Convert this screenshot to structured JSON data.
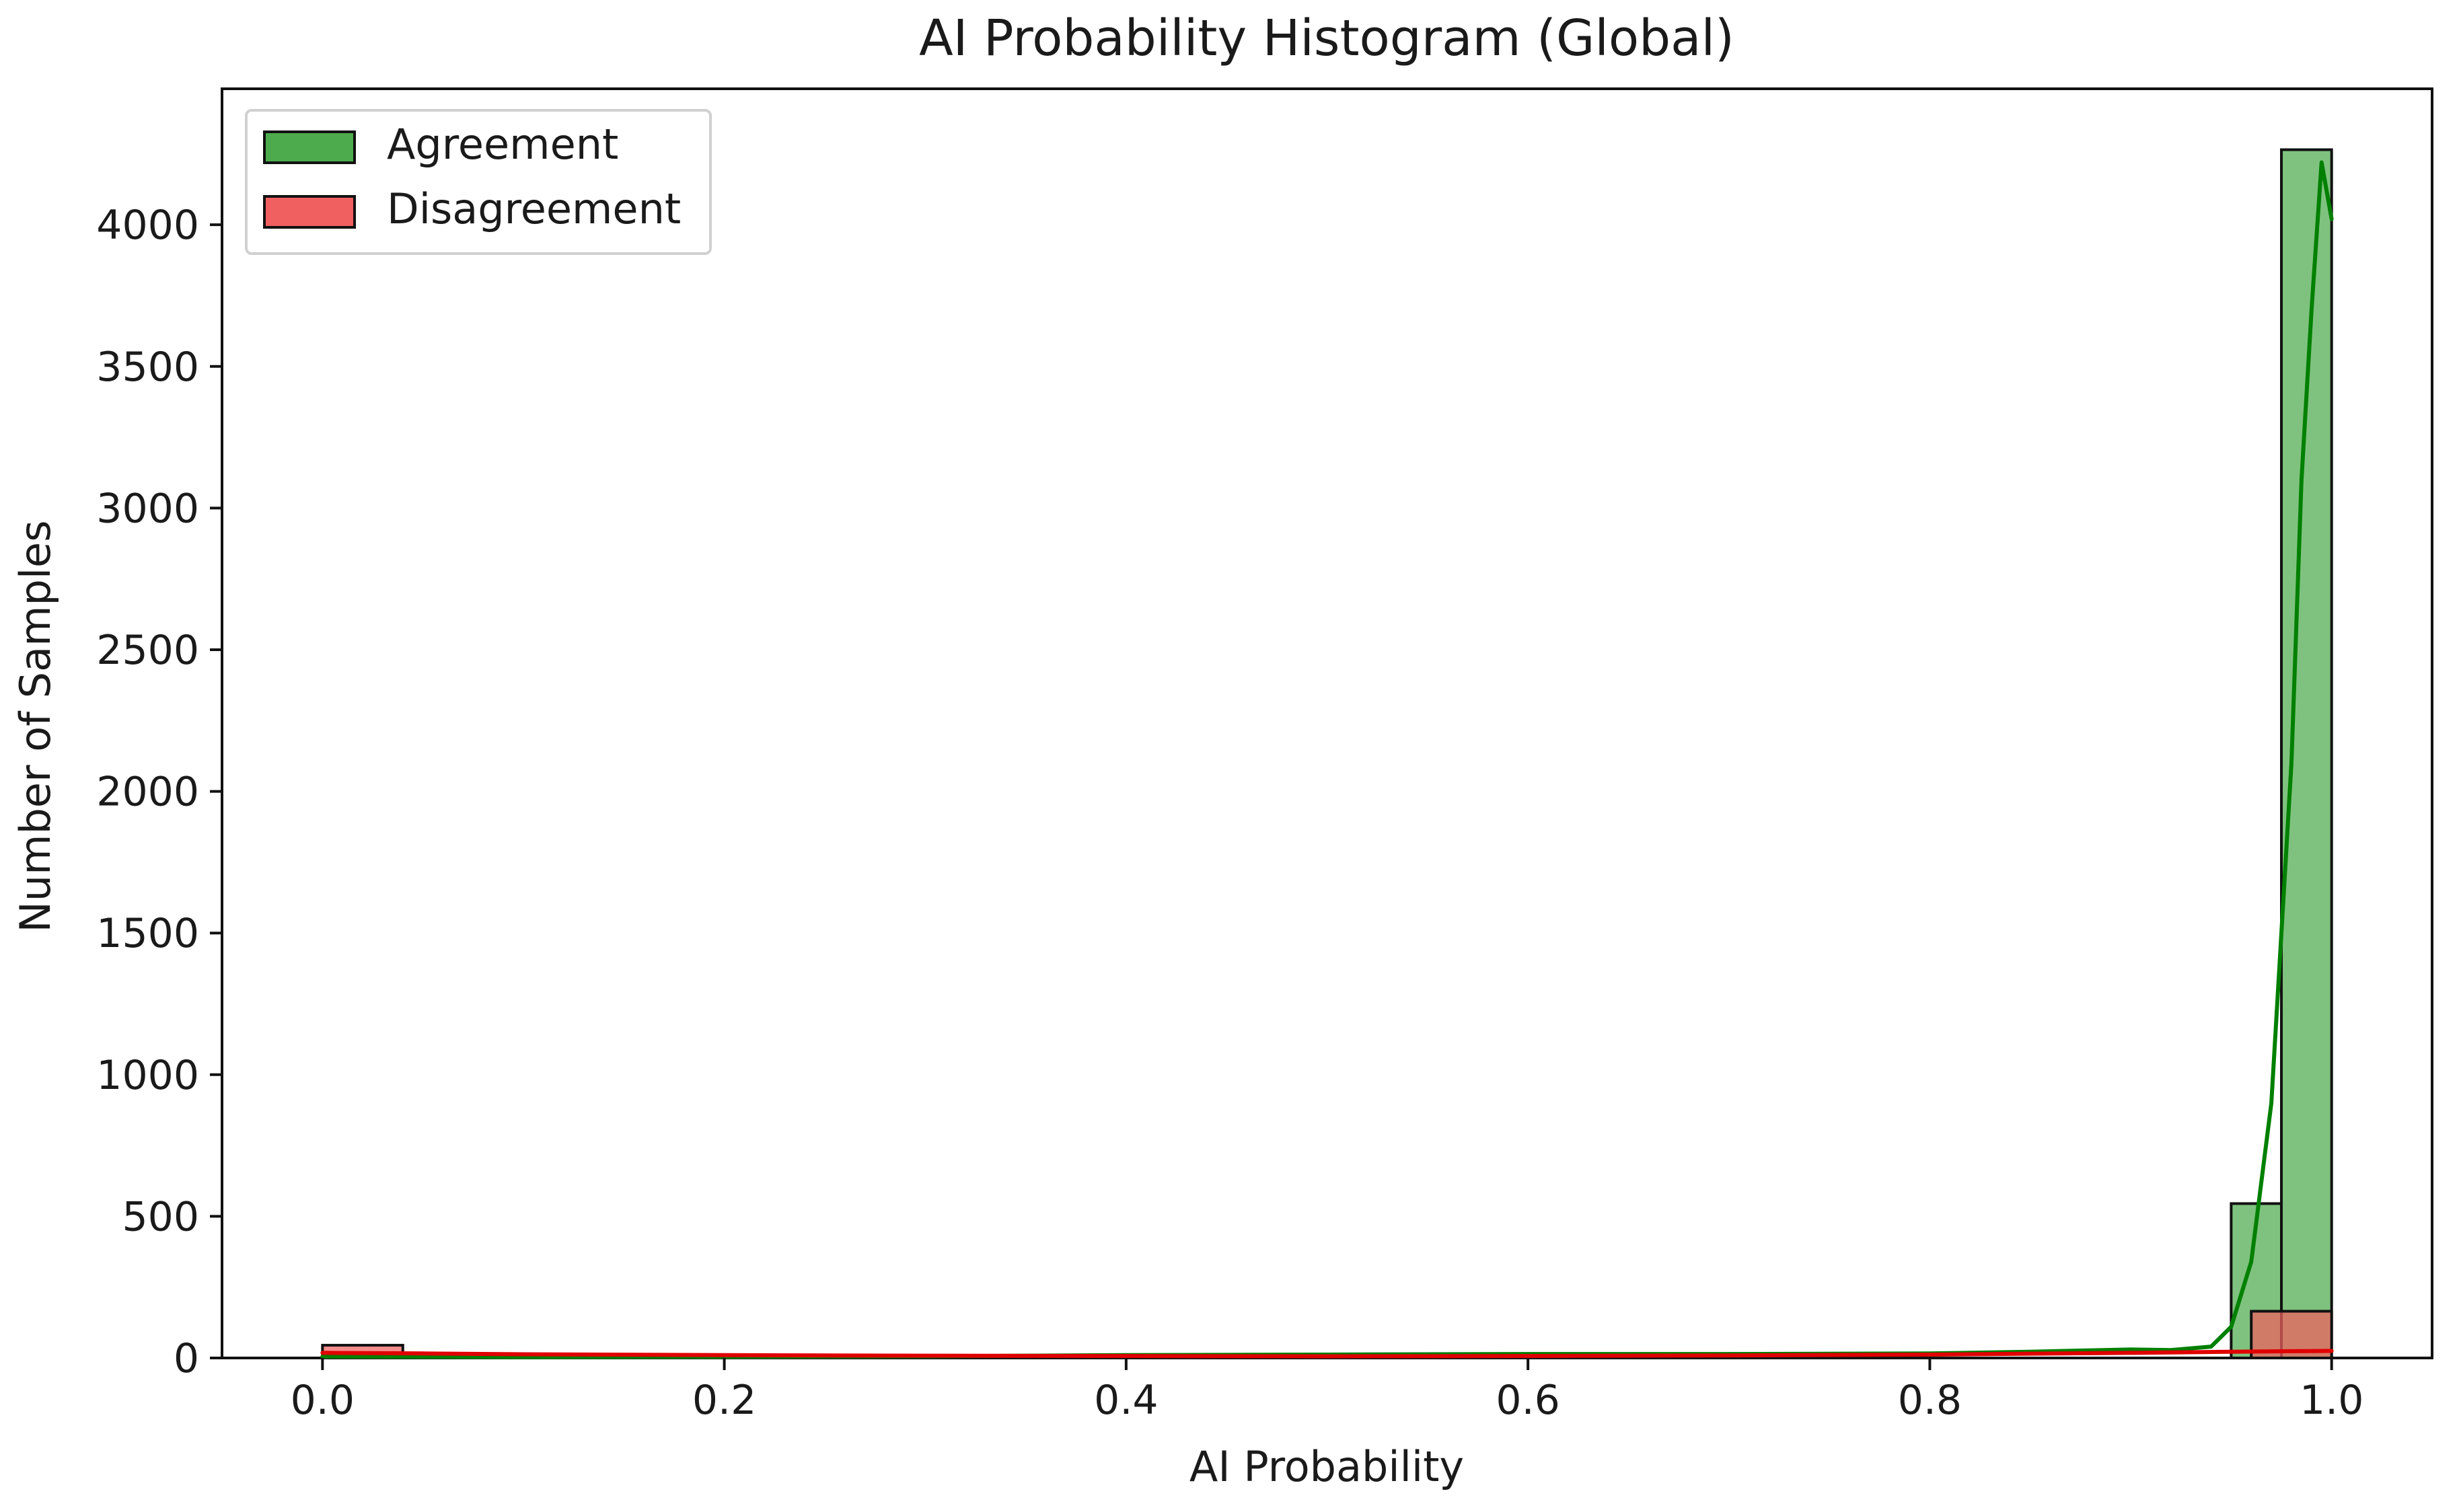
{
  "chart_data": {
    "type": "bar",
    "title": "AI Probability Histogram (Global)",
    "xlabel": "AI Probability",
    "ylabel": "Number of Samples",
    "xlim": [
      -0.05,
      1.05
    ],
    "ylim": [
      0,
      4480
    ],
    "xticks": [
      0.0,
      0.2,
      0.4,
      0.6,
      0.8,
      1.0
    ],
    "xtick_labels": [
      "0.0",
      "0.2",
      "0.4",
      "0.6",
      "0.8",
      "1.0"
    ],
    "yticks": [
      0,
      500,
      1000,
      1500,
      2000,
      2500,
      3000,
      3500,
      4000
    ],
    "ytick_labels": [
      "0",
      "500",
      "1000",
      "1500",
      "2000",
      "2500",
      "3000",
      "3500",
      "4000"
    ],
    "grid": false,
    "legend_position": "top-left",
    "series": [
      {
        "name": "Agreement",
        "color": "#4dab4d",
        "kde_color": "#008000",
        "bins": [
          {
            "x0": 0.95,
            "x1": 0.975,
            "count": 545
          },
          {
            "x0": 0.975,
            "x1": 1.0,
            "count": 4265
          }
        ],
        "kde": [
          [
            0.0,
            5
          ],
          [
            0.1,
            3
          ],
          [
            0.2,
            4
          ],
          [
            0.3,
            6
          ],
          [
            0.4,
            10
          ],
          [
            0.5,
            12
          ],
          [
            0.6,
            14
          ],
          [
            0.7,
            14
          ],
          [
            0.8,
            16
          ],
          [
            0.85,
            22
          ],
          [
            0.9,
            30
          ],
          [
            0.92,
            28
          ],
          [
            0.94,
            40
          ],
          [
            0.95,
            110
          ],
          [
            0.96,
            340
          ],
          [
            0.97,
            900
          ],
          [
            0.98,
            2100
          ],
          [
            0.985,
            3100
          ],
          [
            0.99,
            3700
          ],
          [
            0.995,
            4220
          ],
          [
            1.0,
            4020
          ]
        ]
      },
      {
        "name": "Disagreement",
        "color": "#f06060",
        "kde_color": "#e00000",
        "bins": [
          {
            "x0": 0.0,
            "x1": 0.04,
            "count": 45
          },
          {
            "x0": 0.96,
            "x1": 1.0,
            "count": 165
          }
        ],
        "kde": [
          [
            0.0,
            18
          ],
          [
            0.05,
            16
          ],
          [
            0.1,
            13
          ],
          [
            0.2,
            10
          ],
          [
            0.3,
            8
          ],
          [
            0.4,
            7
          ],
          [
            0.5,
            6
          ],
          [
            0.6,
            7
          ],
          [
            0.7,
            9
          ],
          [
            0.8,
            12
          ],
          [
            0.85,
            15
          ],
          [
            0.9,
            18
          ],
          [
            0.95,
            22
          ],
          [
            0.98,
            24
          ],
          [
            1.0,
            25
          ]
        ]
      }
    ]
  }
}
